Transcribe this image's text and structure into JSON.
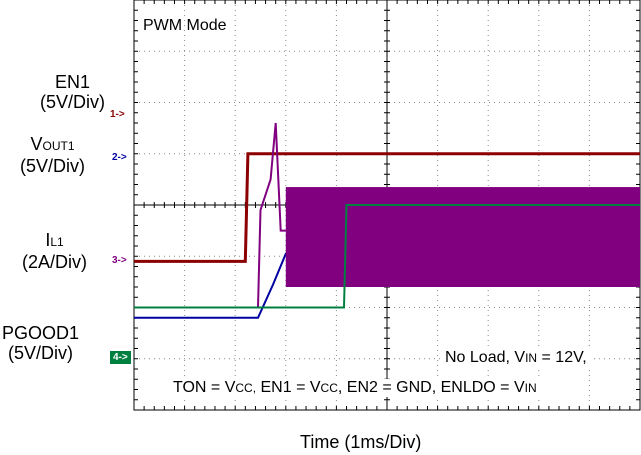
{
  "title": "PWM Mode",
  "xlabel": "Time  (1ms/Div)",
  "channels": [
    {
      "name": "EN1",
      "scale": "(5V/Div)",
      "marker": "1->",
      "color": "#8b0000"
    },
    {
      "name_main": "V",
      "name_sub": "OUT1",
      "scale": "(5V/Div)",
      "marker": "2->",
      "color": "#0000a0"
    },
    {
      "name_main": "I",
      "name_sub": "L1",
      "scale": "(2A/Div)",
      "marker": "3->",
      "color": "#800080"
    },
    {
      "name": "PGOOD1",
      "scale": "(5V/Div)",
      "marker": "4->",
      "color": "#008040"
    }
  ],
  "conditions": {
    "line1": {
      "a": "No Load, V",
      "a_sub": "IN",
      "b": " = 12V,"
    },
    "line2": {
      "a": "TON = V",
      "a_sub": "CC,",
      "b": " EN1 = V",
      "b_sub": "CC",
      "c": ", EN2 = GND, ENLDO = V",
      "c_sub": "IN"
    }
  },
  "chart_data": {
    "type": "line",
    "title": "PWM Mode",
    "xlabel": "Time  (1ms/Div)",
    "x_unit": "ms",
    "xlim": [
      0,
      10
    ],
    "grid": true,
    "series": [
      {
        "name": "EN1",
        "scale": "5V/Div",
        "x": [
          0,
          2.2,
          2.25,
          10
        ],
        "y_div": [
          -1.1,
          -1.1,
          1.0,
          1.0
        ]
      },
      {
        "name": "VOUT1",
        "scale": "5V/Div",
        "x": [
          0,
          2.45,
          2.75,
          3.0,
          10
        ],
        "y_div": [
          -2.2,
          -2.2,
          -1.55,
          -0.95,
          -0.95
        ]
      },
      {
        "name": "IL1",
        "scale": "2A/Div",
        "x": [
          0,
          2.45,
          2.5,
          2.7,
          2.8,
          2.9,
          10
        ],
        "y_div": [
          -2.0,
          -2.0,
          -0.1,
          0.5,
          1.6,
          -0.5,
          -0.5
        ],
        "envelope_after_ms": 3.0,
        "envelope_div": [
          -1.6,
          0.35
        ]
      },
      {
        "name": "PGOOD1",
        "scale": "5V/Div",
        "x": [
          0,
          4.15,
          4.2,
          10
        ],
        "y_div": [
          -2.0,
          -2.0,
          0.0,
          0.0
        ]
      }
    ]
  }
}
